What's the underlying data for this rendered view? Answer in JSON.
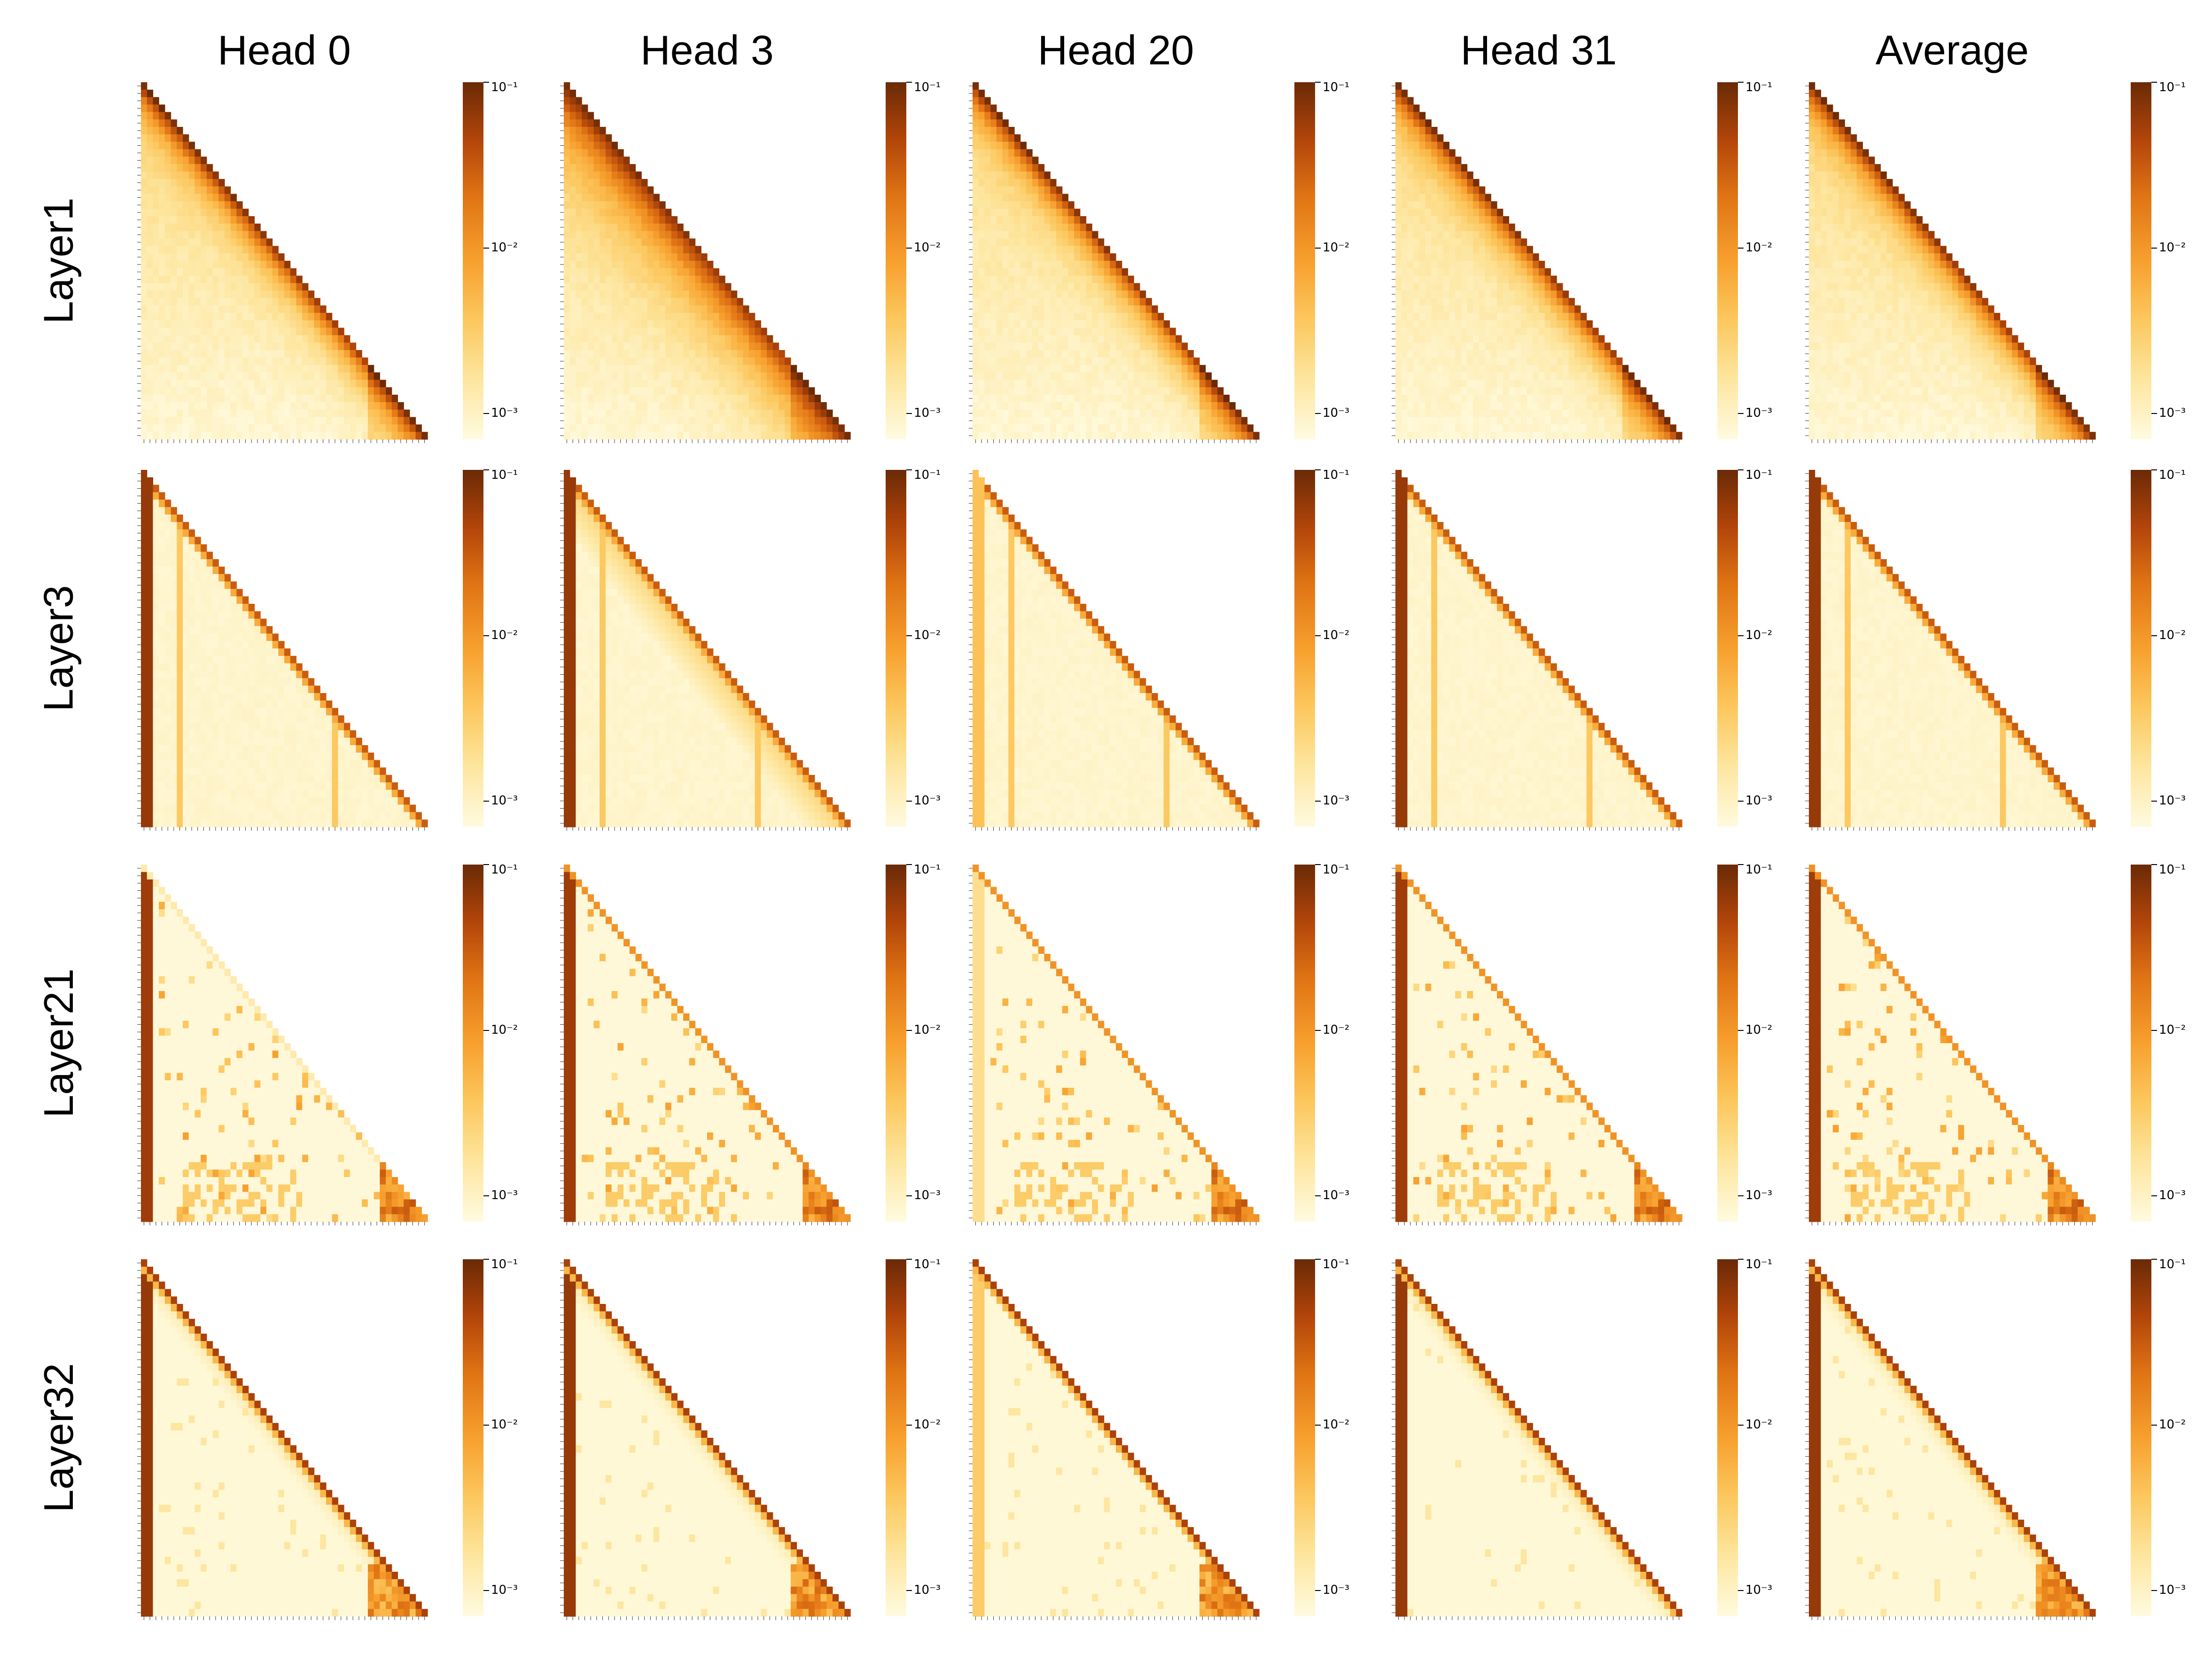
{
  "chart_data": {
    "type": "heatmap",
    "columns": [
      "Head 0",
      "Head 3",
      "Head 20",
      "Head 31",
      "Average"
    ],
    "rows": [
      "Layer1",
      "Layer3",
      "Layer21",
      "Layer32"
    ],
    "colorbar": {
      "scale": "log",
      "range": [
        0.0007,
        0.1
      ],
      "ticks": [
        "10⁻¹",
        "10⁻²",
        "10⁻³"
      ],
      "tick_values": [
        0.1,
        0.01,
        0.001
      ],
      "colormap": [
        "#fffbe0",
        "#fde49a",
        "#fcc65c",
        "#f7a02e",
        "#e07414",
        "#b2450a",
        "#6a2a06"
      ]
    },
    "layer_patterns": {
      "Layer1": "strong diagonal with broad decay below it",
      "Layer3": "sink column at first token, sharp diagonal, sparse vertical stripes",
      "Layer21": "sink column, sparse scattered blocks, diagonal in lower-right",
      "Layer32": "sink column, sharp diagonal, dense block at lower-right"
    }
  }
}
